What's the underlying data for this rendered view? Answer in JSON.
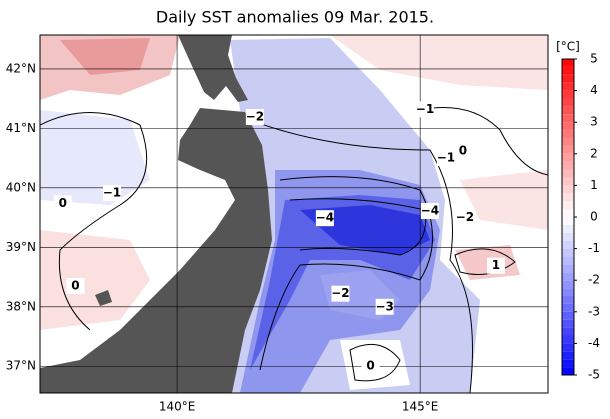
{
  "title": "Daily SST anomalies 09 Mar. 2015.",
  "map": {
    "xlim": [
      137.18,
      147.63
    ],
    "ylim": [
      36.55,
      42.57
    ],
    "xticks": [
      {
        "value": 140,
        "label": "140°E"
      },
      {
        "value": 145,
        "label": "145°E"
      }
    ],
    "yticks": [
      {
        "value": 37,
        "label": "37°N"
      },
      {
        "value": 38,
        "label": "38°N"
      },
      {
        "value": 39,
        "label": "39°N"
      },
      {
        "value": 40,
        "label": "40°N"
      },
      {
        "value": 41,
        "label": "41°N"
      },
      {
        "value": 42,
        "label": "42°N"
      }
    ],
    "contour_labels": [
      {
        "value": -2,
        "label": "−2",
        "lon": 141.6,
        "lat": 41.19
      },
      {
        "value": -1,
        "label": "−1",
        "lon": 145.1,
        "lat": 41.32
      },
      {
        "value": 0,
        "label": "0",
        "lon": 145.88,
        "lat": 40.62
      },
      {
        "value": -1,
        "label": "−1",
        "lon": 145.53,
        "lat": 40.5
      },
      {
        "value": -1,
        "label": "−1",
        "lon": 138.66,
        "lat": 39.91
      },
      {
        "value": 0,
        "label": "0",
        "lon": 137.65,
        "lat": 39.74
      },
      {
        "value": -4,
        "label": "−4",
        "lon": 143.04,
        "lat": 39.49
      },
      {
        "value": -4,
        "label": "−4",
        "lon": 145.2,
        "lat": 39.61
      },
      {
        "value": -2,
        "label": "−2",
        "lon": 145.92,
        "lat": 39.5
      },
      {
        "value": 1,
        "label": "1",
        "lon": 146.56,
        "lat": 38.69
      },
      {
        "value": 0,
        "label": "0",
        "lon": 137.91,
        "lat": 38.35
      },
      {
        "value": -2,
        "label": "−2",
        "lon": 143.36,
        "lat": 38.22
      },
      {
        "value": -3,
        "label": "−3",
        "lon": 144.27,
        "lat": 38.0
      },
      {
        "value": 0,
        "label": "0",
        "lon": 143.98,
        "lat": 37.0
      }
    ]
  },
  "colorbar": {
    "unit": "[°C]",
    "lim": [
      -5,
      5
    ],
    "ticks": [
      -5,
      -4,
      -3,
      -2,
      -1,
      0,
      1,
      2,
      3,
      4,
      5
    ]
  }
}
